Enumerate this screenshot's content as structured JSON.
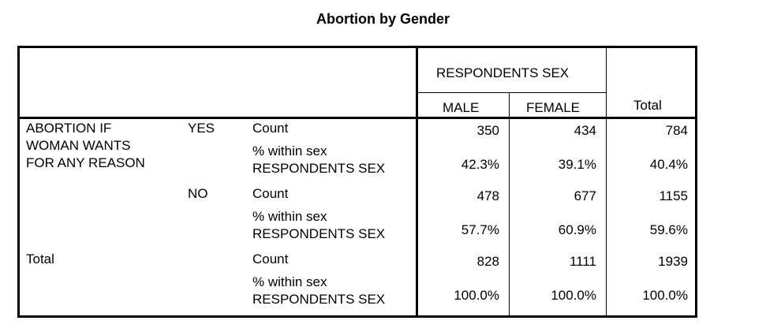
{
  "title": "Abortion by Gender",
  "header": {
    "group": "RESPONDENTS SEX",
    "male": "MALE",
    "female": "FEMALE",
    "total": "Total"
  },
  "rows": {
    "variable_line1": "ABORTION IF",
    "variable_line2": "WOMAN WANTS",
    "variable_line3": "FOR ANY REASON",
    "yes": "YES",
    "no": "NO",
    "total": "Total",
    "count_label": "Count",
    "pct_label_line1": "% within sex",
    "pct_label_line2": "RESPONDENTS SEX"
  },
  "data": {
    "yes_count": [
      "350",
      "434",
      "784"
    ],
    "yes_pct": [
      "42.3%",
      "39.1%",
      "40.4%"
    ],
    "no_count": [
      "478",
      "677",
      "1155"
    ],
    "no_pct": [
      "57.7%",
      "60.9%",
      "59.6%"
    ],
    "total_count": [
      "828",
      "1111",
      "1939"
    ],
    "total_pct": [
      "100.0%",
      "100.0%",
      "100.0%"
    ]
  }
}
